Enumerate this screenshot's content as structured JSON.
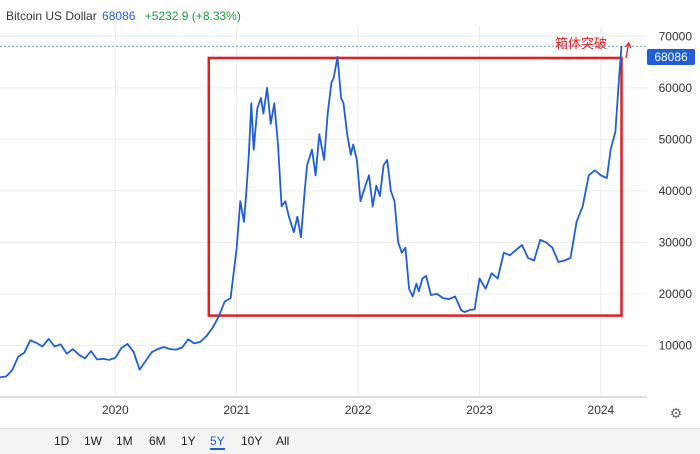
{
  "header": {
    "name": "Bitcoin US Dollar",
    "price": "68086",
    "change": "+5232.9 (+8.33%)"
  },
  "annotation": {
    "text": "箱体突破",
    "color": "#e02020"
  },
  "last_price_label": "68086",
  "range_buttons": [
    "1D",
    "1W",
    "1M",
    "6M",
    "1Y",
    "5Y",
    "10Y",
    "All"
  ],
  "active_range": "5Y",
  "colors": {
    "line": "#1f5ed8",
    "box": "#e02020",
    "up": "#1a9d3a"
  },
  "chart_data": {
    "type": "line",
    "title": "",
    "xlabel": "",
    "ylabel": "",
    "ylim": [
      0,
      72000
    ],
    "xlim": [
      2019.05,
      2024.38
    ],
    "x_ticks": [
      {
        "value": 2020.0,
        "label": "2020"
      },
      {
        "value": 2021.0,
        "label": "2021"
      },
      {
        "value": 2022.0,
        "label": "2022"
      },
      {
        "value": 2023.0,
        "label": "2023"
      },
      {
        "value": 2024.0,
        "label": "2024"
      }
    ],
    "y_ticks": [
      {
        "value": 10000,
        "label": "10000"
      },
      {
        "value": 20000,
        "label": "20000"
      },
      {
        "value": 30000,
        "label": "30000"
      },
      {
        "value": 40000,
        "label": "40000"
      },
      {
        "value": 50000,
        "label": "50000"
      },
      {
        "value": 60000,
        "label": "60000"
      },
      {
        "value": 70000,
        "label": "70000"
      }
    ],
    "box": {
      "x": [
        2020.77,
        2024.17
      ],
      "y": [
        15800,
        65800
      ]
    },
    "reference_line": 68086,
    "series": [
      {
        "x": [
          2019.05,
          2019.1,
          2019.15,
          2019.2,
          2019.25,
          2019.3,
          2019.35,
          2019.4,
          2019.45,
          2019.5,
          2019.55,
          2019.6,
          2019.65,
          2019.7,
          2019.75,
          2019.8,
          2019.85,
          2019.9,
          2019.95,
          2020.0,
          2020.05,
          2020.1,
          2020.15,
          2020.2,
          2020.22,
          2020.25,
          2020.3,
          2020.35,
          2020.4,
          2020.45,
          2020.5,
          2020.55,
          2020.6,
          2020.65,
          2020.7,
          2020.75,
          2020.8,
          2020.85,
          2020.9,
          2020.95,
          2021.0,
          2021.03,
          2021.06,
          2021.08,
          2021.1,
          2021.12,
          2021.14,
          2021.17,
          2021.2,
          2021.22,
          2021.25,
          2021.28,
          2021.31,
          2021.34,
          2021.37,
          2021.4,
          2021.43,
          2021.47,
          2021.5,
          2021.53,
          2021.56,
          2021.58,
          2021.62,
          2021.65,
          2021.68,
          2021.72,
          2021.75,
          2021.78,
          2021.8,
          2021.83,
          2021.86,
          2021.88,
          2021.91,
          2021.94,
          2021.96,
          2021.99,
          2022.02,
          2022.06,
          2022.09,
          2022.12,
          2022.15,
          2022.18,
          2022.21,
          2022.24,
          2022.27,
          2022.3,
          2022.33,
          2022.36,
          2022.39,
          2022.42,
          2022.45,
          2022.48,
          2022.5,
          2022.53,
          2022.56,
          2022.6,
          2022.65,
          2022.7,
          2022.75,
          2022.8,
          2022.85,
          2022.88,
          2022.92,
          2022.96,
          2023.0,
          2023.05,
          2023.1,
          2023.15,
          2023.2,
          2023.25,
          2023.3,
          2023.35,
          2023.4,
          2023.45,
          2023.5,
          2023.55,
          2023.6,
          2023.65,
          2023.7,
          2023.75,
          2023.8,
          2023.85,
          2023.9,
          2023.95,
          2024.0,
          2024.05,
          2024.08,
          2024.12,
          2024.15,
          2024.17
        ],
        "y": [
          3800,
          4000,
          5200,
          7800,
          8600,
          11000,
          10500,
          9800,
          11300,
          9800,
          10200,
          8400,
          9300,
          8200,
          7500,
          8900,
          7300,
          7400,
          7200,
          7600,
          9500,
          10300,
          8800,
          5300,
          6000,
          7000,
          8700,
          9300,
          9700,
          9300,
          9200,
          9600,
          11200,
          10400,
          10700,
          11800,
          13400,
          15500,
          18500,
          19200,
          29000,
          38000,
          34000,
          40000,
          47000,
          57000,
          48000,
          56000,
          58000,
          55000,
          60000,
          53000,
          57000,
          49000,
          37000,
          38000,
          35000,
          32000,
          35000,
          31000,
          40000,
          45000,
          48000,
          43000,
          51000,
          46000,
          55000,
          61000,
          62000,
          66000,
          58000,
          57000,
          51000,
          47000,
          49000,
          46000,
          38000,
          41000,
          43000,
          37000,
          41000,
          39000,
          45000,
          46000,
          40000,
          38000,
          30000,
          28000,
          29000,
          21000,
          19500,
          22000,
          20500,
          23000,
          23500,
          19800,
          20000,
          19200,
          19000,
          19500,
          16800,
          16500,
          16900,
          17000,
          23000,
          21000,
          24000,
          23000,
          28000,
          27500,
          28500,
          29500,
          27000,
          26500,
          30500,
          30000,
          29000,
          26200,
          26500,
          27000,
          34000,
          37000,
          43000,
          44000,
          43000,
          42500,
          48000,
          51500,
          62000,
          68086
        ]
      }
    ]
  }
}
